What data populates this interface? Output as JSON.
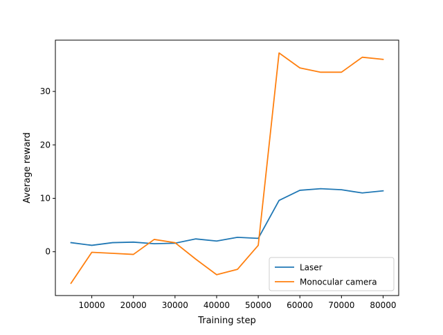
{
  "chart_data": {
    "type": "line",
    "title": "",
    "xlabel": "Training step",
    "ylabel": "Average reward",
    "xlim": [
      1250,
      83750
    ],
    "ylim": [
      -8.2,
      39.6
    ],
    "xticks": [
      10000,
      20000,
      30000,
      40000,
      50000,
      60000,
      70000,
      80000
    ],
    "yticks": [
      0,
      10,
      20,
      30
    ],
    "grid": false,
    "legend_position": "lower right",
    "x": [
      5000,
      10000,
      15000,
      20000,
      25000,
      30000,
      35000,
      40000,
      45000,
      50000,
      55000,
      60000,
      65000,
      70000,
      75000,
      80000
    ],
    "series": [
      {
        "name": "Laser",
        "color": "#1f77b4",
        "values": [
          1.7,
          1.2,
          1.7,
          1.8,
          1.5,
          1.6,
          2.4,
          2.0,
          2.7,
          2.5,
          9.6,
          11.5,
          11.8,
          11.6,
          11.0,
          11.4
        ]
      },
      {
        "name": "Monocular camera",
        "color": "#ff7f0e",
        "values": [
          -5.9,
          -0.1,
          -0.3,
          -0.5,
          2.3,
          1.7,
          -1.4,
          -4.3,
          -3.3,
          1.2,
          37.2,
          34.4,
          33.6,
          33.6,
          36.4,
          36.0
        ]
      }
    ]
  }
}
